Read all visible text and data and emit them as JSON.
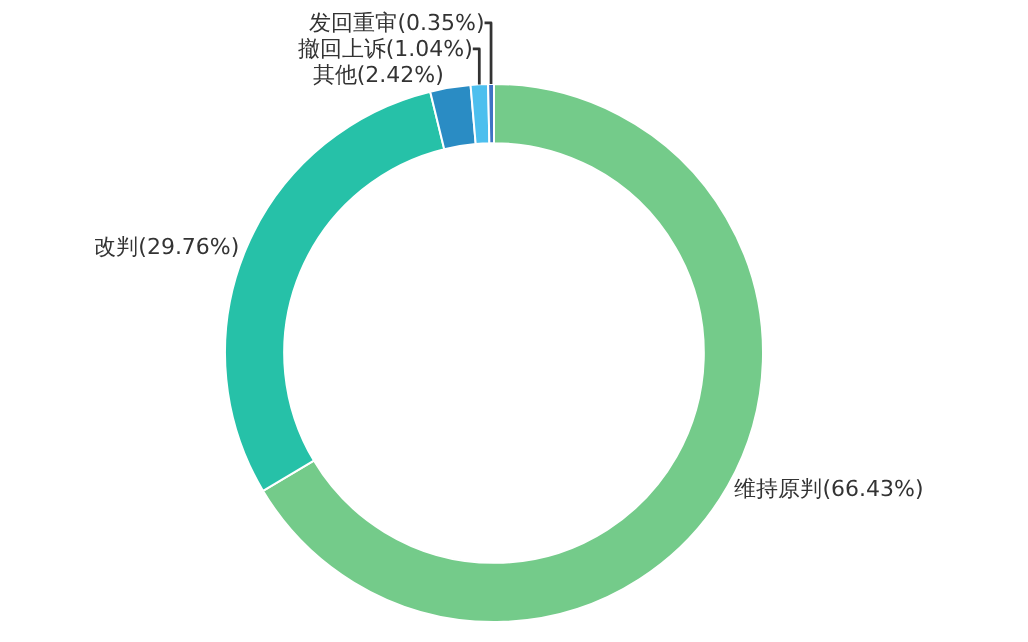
{
  "chart_data": {
    "type": "donut",
    "categories": [
      "维持原判",
      "改判",
      "其他",
      "撤回上诉",
      "发回重审"
    ],
    "values": [
      66.43,
      29.76,
      2.42,
      1.04,
      0.35
    ],
    "value_labels": [
      "(66.43%)",
      "(29.76%)",
      "(2.42%)",
      "(1.04%)",
      "(0.35%)"
    ],
    "colors": [
      "#74cb8a",
      "#26c1a8",
      "#2a8cc4",
      "#4cbfee",
      "#3f74c4"
    ],
    "legend": false
  }
}
